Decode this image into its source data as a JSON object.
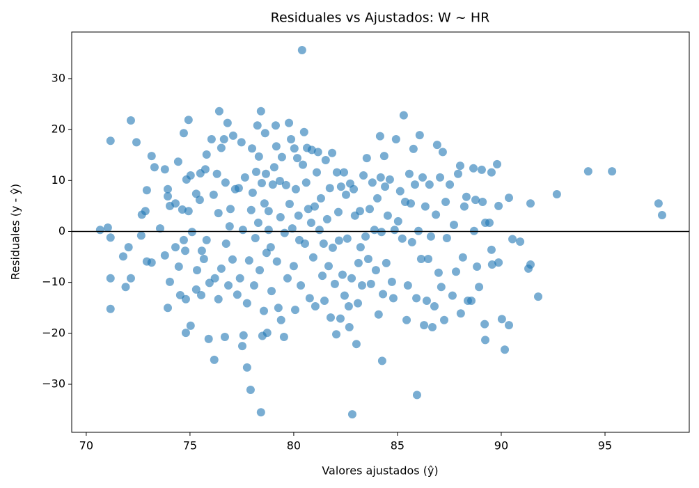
{
  "chart_data": {
    "type": "scatter",
    "title": "Residuales vs Ajustados: W ~ HR",
    "xlabel": "Valores ajustados (ŷ)",
    "ylabel": "Residuales (y - ŷ)",
    "color": "#1f77b4",
    "alpha": 0.6,
    "hline": 0,
    "hline_color": "#000000",
    "xlim": [
      69.3,
      99.06
    ],
    "ylim": [
      -39.43,
      39.15
    ],
    "xticks": [
      70,
      75,
      80,
      85,
      90,
      95
    ],
    "yticks": [
      {
        "value": -30,
        "label": "−30"
      },
      {
        "value": -20,
        "label": "−20"
      },
      {
        "value": -10,
        "label": "−10"
      },
      0,
      10,
      20,
      30
    ],
    "x": [
      70.67,
      71.04,
      71.17,
      71.17,
      71.17,
      71.17,
      71.78,
      71.9,
      72.04,
      72.15,
      72.15,
      72.42,
      72.65,
      72.68,
      72.85,
      72.92,
      72.92,
      73.15,
      73.15,
      73.29,
      73.56,
      73.79,
      73.79,
      73.93,
      73.93,
      73.93,
      74.03,
      74.03,
      74.3,
      74.3,
      74.43,
      74.46,
      74.53,
      74.63,
      74.7,
      74.7,
      74.77,
      74.8,
      74.8,
      74.83,
      74.93,
      74.93,
      75.03,
      75.03,
      75.1,
      75.3,
      75.3,
      75.34,
      75.47,
      75.5,
      75.54,
      75.57,
      75.67,
      75.74,
      75.8,
      75.8,
      75.9,
      75.94,
      76.04,
      76.14,
      76.17,
      76.2,
      76.3,
      76.37,
      76.37,
      76.41,
      76.51,
      76.51,
      76.64,
      76.68,
      76.71,
      76.74,
      76.81,
      76.85,
      76.91,
      76.95,
      77.05,
      77.08,
      77.18,
      77.28,
      77.35,
      77.41,
      77.48,
      77.52,
      77.55,
      77.58,
      77.65,
      77.75,
      77.75,
      77.85,
      77.92,
      77.95,
      77.99,
      78.02,
      78.09,
      78.15,
      78.19,
      78.25,
      78.29,
      78.32,
      78.36,
      78.42,
      78.42,
      78.46,
      78.49,
      78.56,
      78.59,
      78.62,
      78.66,
      78.69,
      78.72,
      78.79,
      78.79,
      78.89,
      78.93,
      78.99,
      79.06,
      79.13,
      79.16,
      79.19,
      79.26,
      79.33,
      79.36,
      79.39,
      79.43,
      79.53,
      79.56,
      79.63,
      79.7,
      79.77,
      79.8,
      79.87,
      79.93,
      80,
      80.03,
      80.07,
      80.1,
      80.17,
      80.23,
      80.27,
      80.34,
      80.4,
      80.44,
      80.5,
      80.54,
      80.6,
      80.64,
      80.7,
      80.77,
      80.84,
      80.87,
      80.94,
      81.01,
      81.04,
      81.11,
      81.17,
      81.24,
      81.31,
      81.38,
      81.44,
      81.48,
      81.54,
      81.61,
      81.68,
      81.74,
      81.78,
      81.85,
      81.88,
      81.98,
      82.05,
      82.08,
      82.15,
      82.18,
      82.25,
      82.28,
      82.35,
      82.42,
      82.45,
      82.52,
      82.58,
      82.65,
      82.68,
      82.72,
      82.79,
      82.82,
      82.89,
      82.95,
      83.02,
      83.09,
      83.12,
      83.19,
      83.22,
      83.29,
      83.36,
      83.46,
      83.52,
      83.59,
      83.66,
      83.72,
      83.79,
      83.89,
      83.96,
      84.03,
      84.09,
      84.16,
      84.19,
      84.23,
      84.26,
      84.3,
      84.36,
      84.4,
      84.46,
      84.53,
      84.63,
      84.73,
      84.8,
      84.86,
      84.93,
      85.03,
      85.13,
      85.23,
      85.3,
      85.37,
      85.44,
      85.5,
      85.57,
      85.64,
      85.7,
      85.77,
      85.84,
      85.91,
      85.94,
      86.01,
      86.07,
      86.14,
      86.21,
      86.28,
      86.34,
      86.41,
      86.48,
      86.54,
      86.61,
      86.68,
      86.78,
      86.85,
      86.91,
      86.98,
      87.05,
      87.11,
      87.18,
      87.25,
      87.32,
      87.38,
      87.52,
      87.65,
      87.72,
      87.82,
      87.92,
      88.02,
      88.05,
      88.15,
      88.22,
      88.32,
      88.39,
      88.56,
      88.66,
      88.69,
      88.76,
      88.83,
      88.93,
      89.06,
      89.1,
      89.2,
      89.23,
      89.23,
      89.43,
      89.53,
      89.53,
      89.56,
      89.8,
      89.87,
      89.87,
      90.03,
      90.17,
      90.37,
      90.37,
      90.54,
      90.91,
      91.31,
      91.41,
      91.41,
      91.78,
      92.68,
      94.19,
      95.34,
      97.58,
      97.75
    ],
    "y": [
      0.3,
      0.75,
      17.8,
      -1.2,
      -9.2,
      -15.2,
      -4.9,
      -10.9,
      -3.1,
      21.8,
      -9.2,
      17.5,
      -0.8,
      3.3,
      4,
      8.1,
      -5.9,
      14.8,
      -6.1,
      12.6,
      0.6,
      12.2,
      -4.7,
      8.3,
      6.9,
      -15,
      -9.9,
      5,
      5.5,
      -3.1,
      13.7,
      -6.9,
      -12.5,
      4.3,
      19.3,
      -1.7,
      -3.8,
      -13.3,
      -19.9,
      10.2,
      21.9,
      4,
      -18.5,
      11,
      -0.1,
      7.4,
      -11.4,
      -7.6,
      6.2,
      11.4,
      -12.5,
      -3.8,
      -5.4,
      12.2,
      15.1,
      -1.7,
      -21.1,
      -10.1,
      18.1,
      7.2,
      -25.2,
      -9.2,
      11.3,
      -13.3,
      3.6,
      23.6,
      -7.3,
      16.4,
      18.1,
      -20.7,
      9.6,
      -2.4,
      21.3,
      -10.6,
      1,
      4.4,
      -5.5,
      18.8,
      8.3,
      -12.4,
      8.5,
      -9.2,
      17.5,
      -22.5,
      0.3,
      -20.4,
      10.6,
      -14.1,
      -26.7,
      -5.7,
      -31.1,
      4.2,
      16.3,
      7.6,
      -10.6,
      -1.3,
      11.7,
      20.8,
      1.7,
      14.7,
      -7.6,
      23.6,
      -35.5,
      9.5,
      -20.5,
      -15.6,
      5.5,
      19.3,
      11.3,
      -4.2,
      -19.9,
      4,
      0.3,
      -3.1,
      -11.7,
      9.2,
      12.6,
      20.8,
      16.7,
      -5.9,
      -15,
      9.9,
      2.8,
      -17.4,
      14.6,
      -20.7,
      -0.3,
      9.1,
      -9.2,
      21.3,
      5.4,
      18.1,
      0.6,
      -6.8,
      16.3,
      -15.4,
      8.3,
      14.4,
      3.1,
      -1.7,
      -10.6,
      35.6,
      13.1,
      19.5,
      -2.4,
      9.6,
      16.4,
      4.4,
      -13.1,
      1.7,
      16,
      -5.1,
      4.9,
      -14.7,
      11.6,
      15.6,
      0.3,
      6.5,
      -8.7,
      -2.4,
      -13.6,
      14,
      2.4,
      -6.8,
      8.5,
      -16.9,
      15.4,
      -3.2,
      -10.3,
      -20.2,
      11.6,
      3.8,
      -1.8,
      -17.1,
      8.8,
      -8.5,
      11.6,
      -12.6,
      7.2,
      -1.4,
      -14.7,
      -18.8,
      9.4,
      -9.2,
      -35.9,
      8.3,
      3.1,
      -22.1,
      -14.1,
      -6.2,
      4,
      -3.1,
      -10.6,
      11,
      -1,
      14.4,
      -5.4,
      4.4,
      -10.3,
      9.6,
      0.3,
      -7.6,
      6.5,
      -16.3,
      18.7,
      10.6,
      -0.1,
      -25.4,
      -12.3,
      14.8,
      8.8,
      -6.2,
      3.1,
      10.2,
      -9.9,
      -13.1,
      0.3,
      18.1,
      2,
      7.9,
      -1.4,
      22.8,
      5.8,
      -17.4,
      -10.6,
      11.3,
      5.5,
      -2.1,
      16.2,
      9.2,
      -13.1,
      -32.1,
      0.1,
      18.9,
      -5.4,
      10.6,
      -18.4,
      4.9,
      -13.6,
      -5.4,
      9.2,
      -1,
      -18.8,
      -14.7,
      3.3,
      17,
      -8.1,
      10.6,
      -10.9,
      15.6,
      -17.4,
      5.8,
      -1.3,
      9.2,
      -12.6,
      1.3,
      -7.9,
      11.3,
      12.9,
      -16.1,
      -5.1,
      4.9,
      6.8,
      -13.6,
      -13.6,
      12.4,
      0.1,
      6.2,
      -6.9,
      -10.9,
      12.1,
      5.8,
      -18.2,
      1.7,
      -21.3,
      1.7,
      11.6,
      -3.6,
      -6.5,
      13.2,
      -6.1,
      5,
      -17.2,
      -23.2,
      -18.4,
      6.6,
      -1.5,
      -2,
      -7.3,
      5.5,
      -6.5,
      -12.8,
      7.3,
      11.8,
      11.8,
      5.5,
      3.2
    ]
  }
}
